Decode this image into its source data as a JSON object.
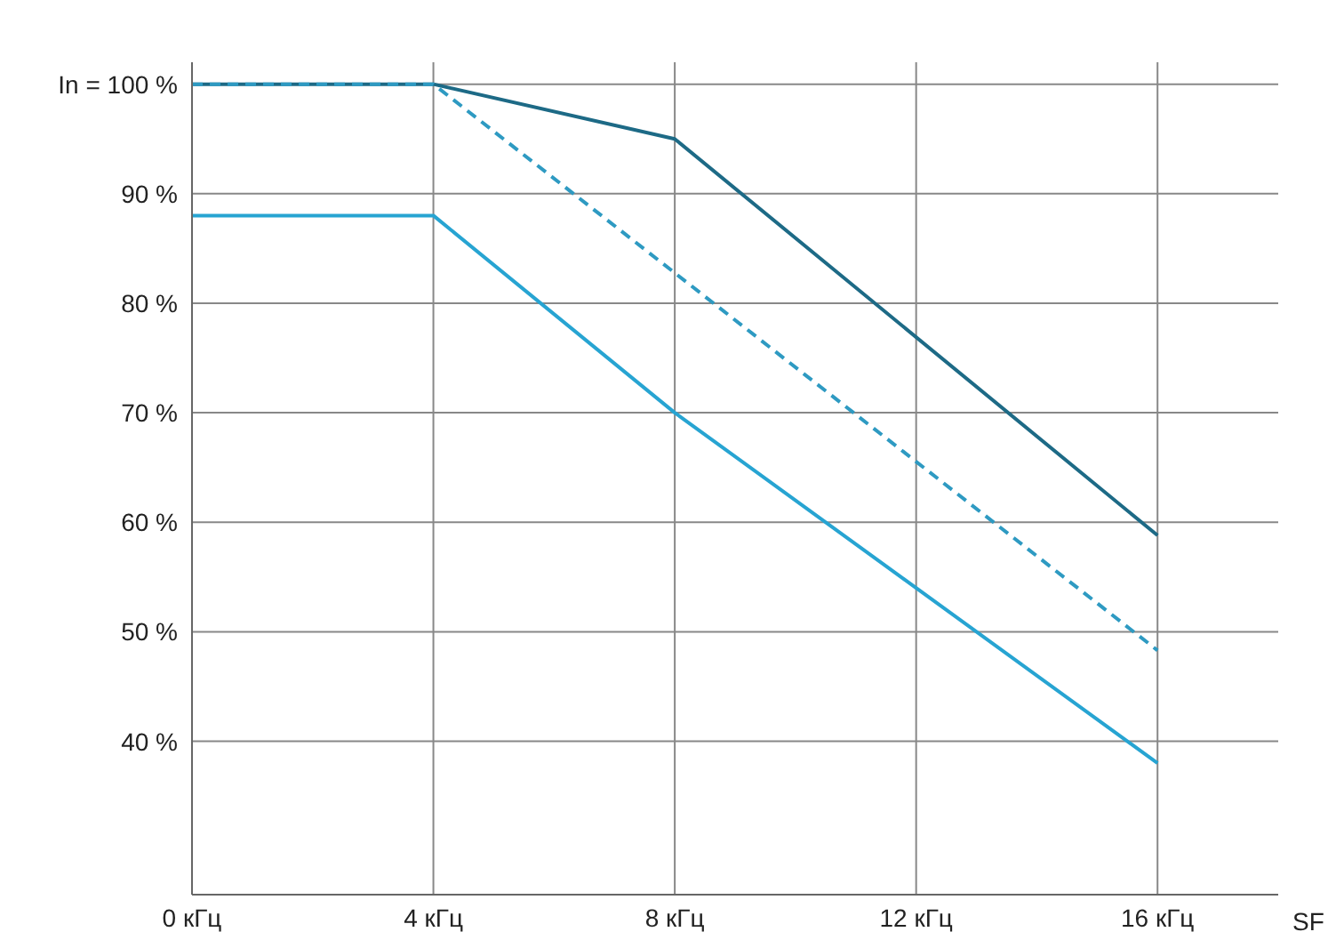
{
  "chart_data": {
    "type": "line",
    "xlabel": "SF",
    "x": [
      0,
      4,
      8,
      16
    ],
    "xlim": [
      0,
      18
    ],
    "xticks": [
      {
        "value": 0,
        "label": "0 кГц"
      },
      {
        "value": 4,
        "label": "4 кГц"
      },
      {
        "value": 8,
        "label": "8 кГц"
      },
      {
        "value": 12,
        "label": "12 кГц"
      },
      {
        "value": 16,
        "label": "16 кГц"
      }
    ],
    "ylim": [
      26,
      102
    ],
    "yticks": [
      {
        "value": 40,
        "label": "40 %"
      },
      {
        "value": 50,
        "label": "50 %"
      },
      {
        "value": 60,
        "label": "60 %"
      },
      {
        "value": 70,
        "label": "70 %"
      },
      {
        "value": 80,
        "label": "80 %"
      },
      {
        "value": 90,
        "label": "90 %"
      },
      {
        "value": 100,
        "label": "In = 100 %"
      }
    ],
    "grid": true,
    "marker": "none",
    "series": [
      {
        "color": "#1d6a86",
        "values": [
          100,
          100,
          95,
          58.8
        ],
        "line_style": "solid"
      },
      {
        "color": "#2e9ac2",
        "values": [
          100,
          100,
          null,
          48.3
        ],
        "line_style": "dashed"
      },
      {
        "color": "#27a4d2",
        "values": [
          88,
          88,
          70,
          38
        ],
        "line_style": "solid"
      }
    ]
  }
}
